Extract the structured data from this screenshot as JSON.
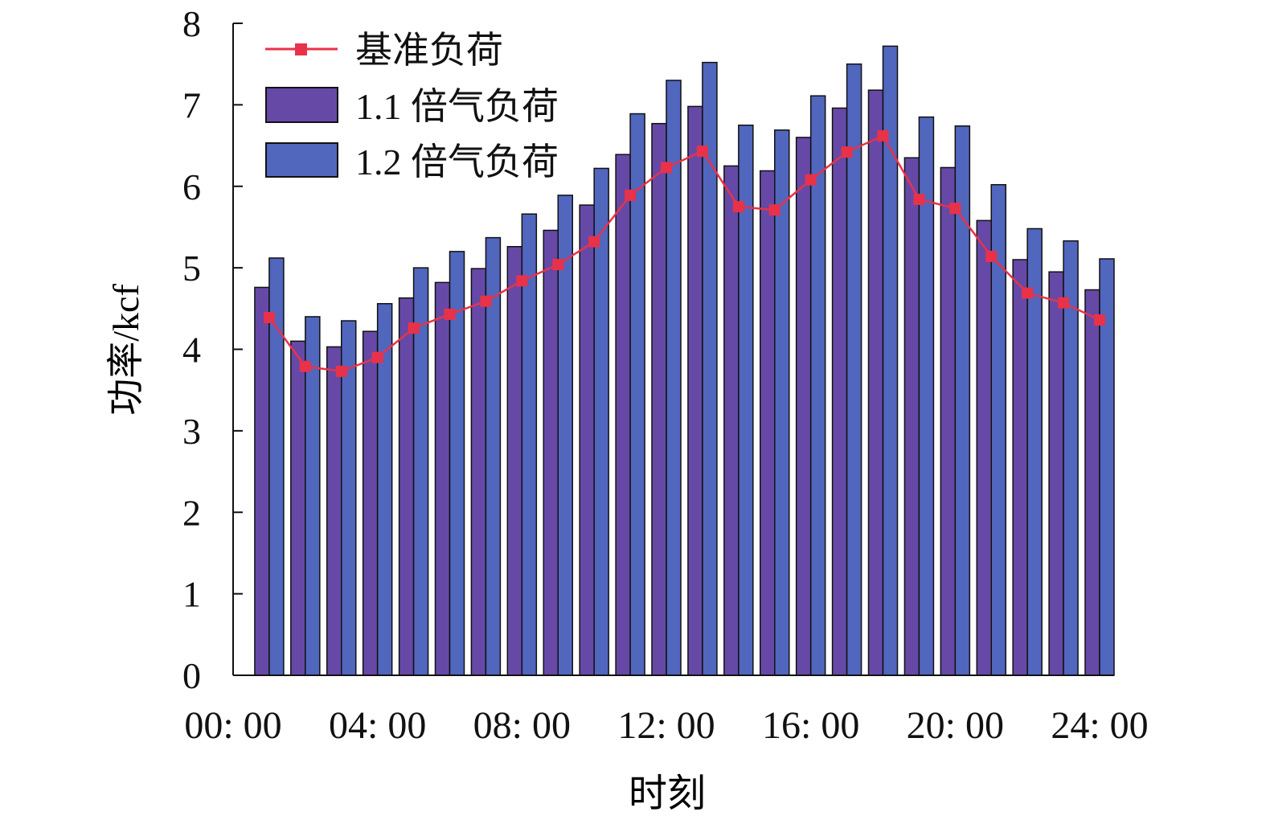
{
  "chart_data": {
    "type": "bar",
    "title": "",
    "xlabel": "时刻",
    "ylabel": "功率/kcf",
    "ylim": [
      0,
      8
    ],
    "xlim": [
      0,
      24
    ],
    "yticks": [
      "0",
      "1",
      "2",
      "3",
      "4",
      "5",
      "6",
      "7",
      "8"
    ],
    "xticks": [
      {
        "value": 0,
        "label": "00: 00"
      },
      {
        "value": 4,
        "label": "04: 00"
      },
      {
        "value": 8,
        "label": "08: 00"
      },
      {
        "value": 12,
        "label": "12: 00"
      },
      {
        "value": 16,
        "label": "16: 00"
      },
      {
        "value": 20,
        "label": "20: 00"
      },
      {
        "value": 24,
        "label": "24: 00"
      }
    ],
    "hours": [
      1,
      2,
      3,
      4,
      5,
      6,
      7,
      8,
      9,
      10,
      11,
      12,
      13,
      14,
      15,
      16,
      17,
      18,
      19,
      20,
      21,
      22,
      23,
      24
    ],
    "legend_position": "top-left",
    "series": [
      {
        "name": "基准负荷",
        "type": "line",
        "color": "#e8324a",
        "values": [
          4.39,
          3.79,
          3.73,
          3.9,
          4.26,
          4.43,
          4.59,
          4.84,
          5.04,
          5.32,
          5.89,
          6.23,
          6.43,
          5.75,
          5.71,
          6.08,
          6.42,
          6.62,
          5.84,
          5.73,
          5.14,
          4.69,
          4.57,
          4.36
        ]
      },
      {
        "name": "1.1 倍气负荷",
        "type": "bar",
        "color": "#6649a6",
        "values": [
          4.76,
          4.1,
          4.03,
          4.22,
          4.63,
          4.82,
          4.99,
          5.26,
          5.46,
          5.77,
          6.39,
          6.77,
          6.98,
          6.25,
          6.19,
          6.6,
          6.96,
          7.18,
          6.35,
          6.23,
          5.58,
          5.1,
          4.95,
          4.73
        ]
      },
      {
        "name": "1.2 倍气负荷",
        "type": "bar",
        "color": "#5166bd",
        "values": [
          5.12,
          4.4,
          4.35,
          4.56,
          5.0,
          5.2,
          5.37,
          5.66,
          5.89,
          6.22,
          6.89,
          7.3,
          7.52,
          6.75,
          6.69,
          7.11,
          7.5,
          7.72,
          6.85,
          6.74,
          6.02,
          5.48,
          5.33,
          5.11
        ]
      }
    ]
  }
}
